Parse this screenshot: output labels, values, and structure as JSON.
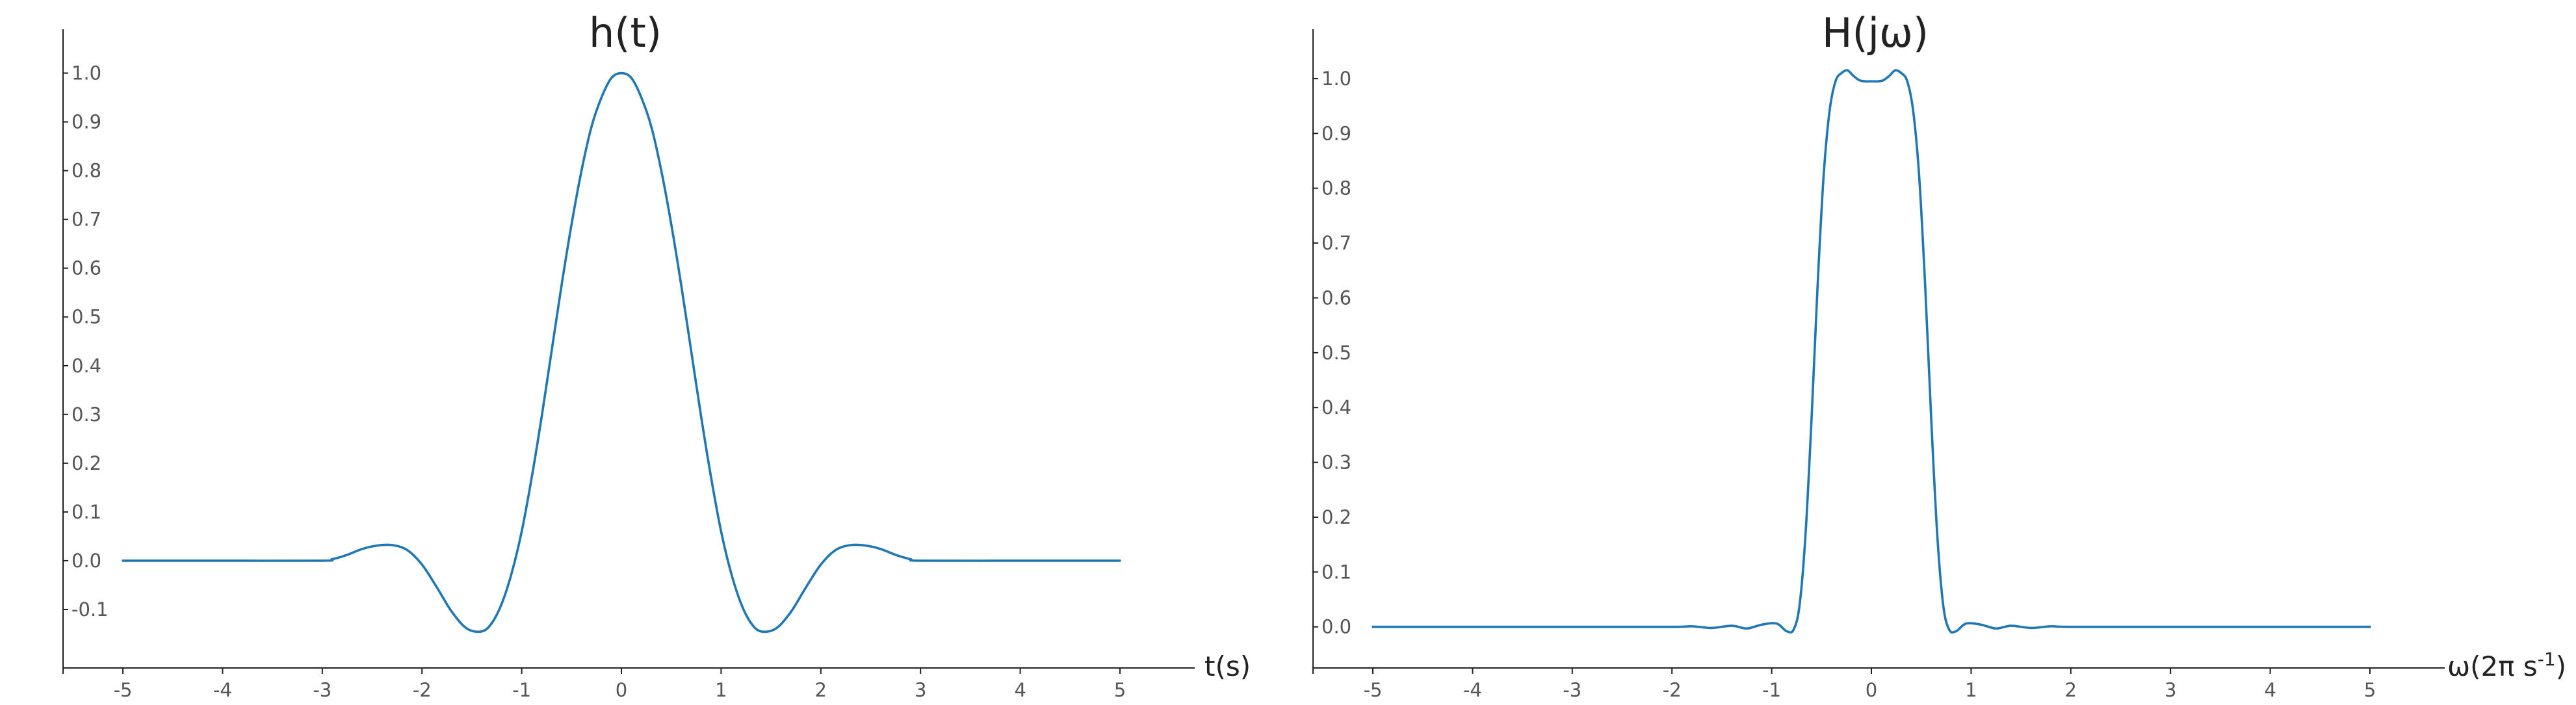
{
  "chart_data": [
    {
      "type": "line",
      "title": "h(t)",
      "xlabel": "t(s)",
      "ylabel": "",
      "xlim": [
        -5.6,
        5.75
      ],
      "ylim": [
        -0.22,
        1.09
      ],
      "xticks": [
        -5,
        -4,
        -3,
        -2,
        -1,
        0,
        1,
        2,
        3,
        4,
        5
      ],
      "yticks": [
        -0.1,
        0.0,
        0.1,
        0.2,
        0.3,
        0.4,
        0.5,
        0.6,
        0.7,
        0.8,
        0.9,
        1.0
      ],
      "xticklabels": [
        "-5",
        "-4",
        "-3",
        "-2",
        "-1",
        "0",
        "1",
        "2",
        "3",
        "4",
        "5"
      ],
      "yticklabels": [
        "-0.1",
        "0.0",
        "0.1",
        "0.2",
        "0.3",
        "0.4",
        "0.5",
        "0.6",
        "0.7",
        "0.8",
        "0.9",
        "1.0"
      ],
      "grid": false,
      "color": "#1f77b4",
      "series": [
        {
          "x": [
            -5,
            -4,
            -3,
            -2.9,
            -2.75,
            -2.6,
            -2.45,
            -2.3,
            -2.15,
            -2.0,
            -1.85,
            -1.7,
            -1.55,
            -1.4,
            -1.3,
            -1.2,
            -1.1,
            -1.0,
            -0.9,
            -0.8,
            -0.7,
            -0.6,
            -0.5,
            -0.4,
            -0.3,
            -0.2,
            -0.1,
            0,
            0.1,
            0.2,
            0.3,
            0.4,
            0.5,
            0.6,
            0.7,
            0.8,
            0.9,
            1.0,
            1.1,
            1.2,
            1.3,
            1.4,
            1.55,
            1.7,
            1.85,
            2.0,
            2.15,
            2.3,
            2.45,
            2.6,
            2.75,
            2.9,
            3,
            4,
            5
          ],
          "y": [
            0.0,
            0.0,
            0.0,
            0.003,
            0.012,
            0.024,
            0.031,
            0.032,
            0.022,
            -0.008,
            -0.055,
            -0.105,
            -0.139,
            -0.145,
            -0.128,
            -0.088,
            -0.025,
            0.06,
            0.17,
            0.295,
            0.43,
            0.565,
            0.69,
            0.8,
            0.89,
            0.95,
            0.99,
            1.0,
            0.99,
            0.95,
            0.89,
            0.8,
            0.69,
            0.565,
            0.43,
            0.295,
            0.17,
            0.06,
            -0.025,
            -0.088,
            -0.128,
            -0.145,
            -0.139,
            -0.105,
            -0.055,
            -0.008,
            0.022,
            0.032,
            0.031,
            0.024,
            0.012,
            0.003,
            0.0,
            0.0,
            0.0
          ]
        }
      ]
    },
    {
      "type": "line",
      "title": "H(jω)",
      "xlabel": "ω(2π s",
      "xlabel_sup": "-1",
      "xlabel_close": ")",
      "ylabel": "",
      "xlim": [
        -5.6,
        5.75
      ],
      "ylim": [
        -0.075,
        1.09
      ],
      "xticks": [
        -5,
        -4,
        -3,
        -2,
        -1,
        0,
        1,
        2,
        3,
        4,
        5
      ],
      "yticks": [
        0.0,
        0.1,
        0.2,
        0.3,
        0.4,
        0.5,
        0.6,
        0.7,
        0.8,
        0.9,
        1.0
      ],
      "xticklabels": [
        "-5",
        "-4",
        "-3",
        "-2",
        "-1",
        "0",
        "1",
        "2",
        "3",
        "4",
        "5"
      ],
      "yticklabels": [
        "0.0",
        "0.1",
        "0.2",
        "0.3",
        "0.4",
        "0.5",
        "0.6",
        "0.7",
        "0.8",
        "0.9",
        "1.0"
      ],
      "grid": false,
      "color": "#1f77b4",
      "series": [
        {
          "x": [
            -5,
            -3,
            -2,
            -1.8,
            -1.6,
            -1.4,
            -1.25,
            -1.1,
            -0.95,
            -0.85,
            -0.78,
            -0.72,
            -0.66,
            -0.6,
            -0.54,
            -0.48,
            -0.42,
            -0.36,
            -0.3,
            -0.24,
            -0.18,
            -0.12,
            -0.06,
            0,
            0.06,
            0.12,
            0.18,
            0.24,
            0.3,
            0.36,
            0.42,
            0.48,
            0.54,
            0.6,
            0.66,
            0.72,
            0.78,
            0.85,
            0.95,
            1.1,
            1.25,
            1.4,
            1.6,
            1.8,
            2,
            3,
            5
          ],
          "y": [
            0.0,
            0.0,
            0.0,
            0.001,
            -0.002,
            0.002,
            -0.003,
            0.004,
            0.006,
            -0.008,
            -0.005,
            0.04,
            0.17,
            0.38,
            0.62,
            0.82,
            0.94,
            0.995,
            1.01,
            1.015,
            1.005,
            0.997,
            0.995,
            0.995,
            0.995,
            0.997,
            1.005,
            1.015,
            1.01,
            0.995,
            0.94,
            0.82,
            0.62,
            0.38,
            0.17,
            0.04,
            -0.005,
            -0.008,
            0.006,
            0.004,
            -0.003,
            0.002,
            -0.002,
            0.001,
            0.0,
            0.0,
            0.0
          ]
        }
      ]
    }
  ]
}
